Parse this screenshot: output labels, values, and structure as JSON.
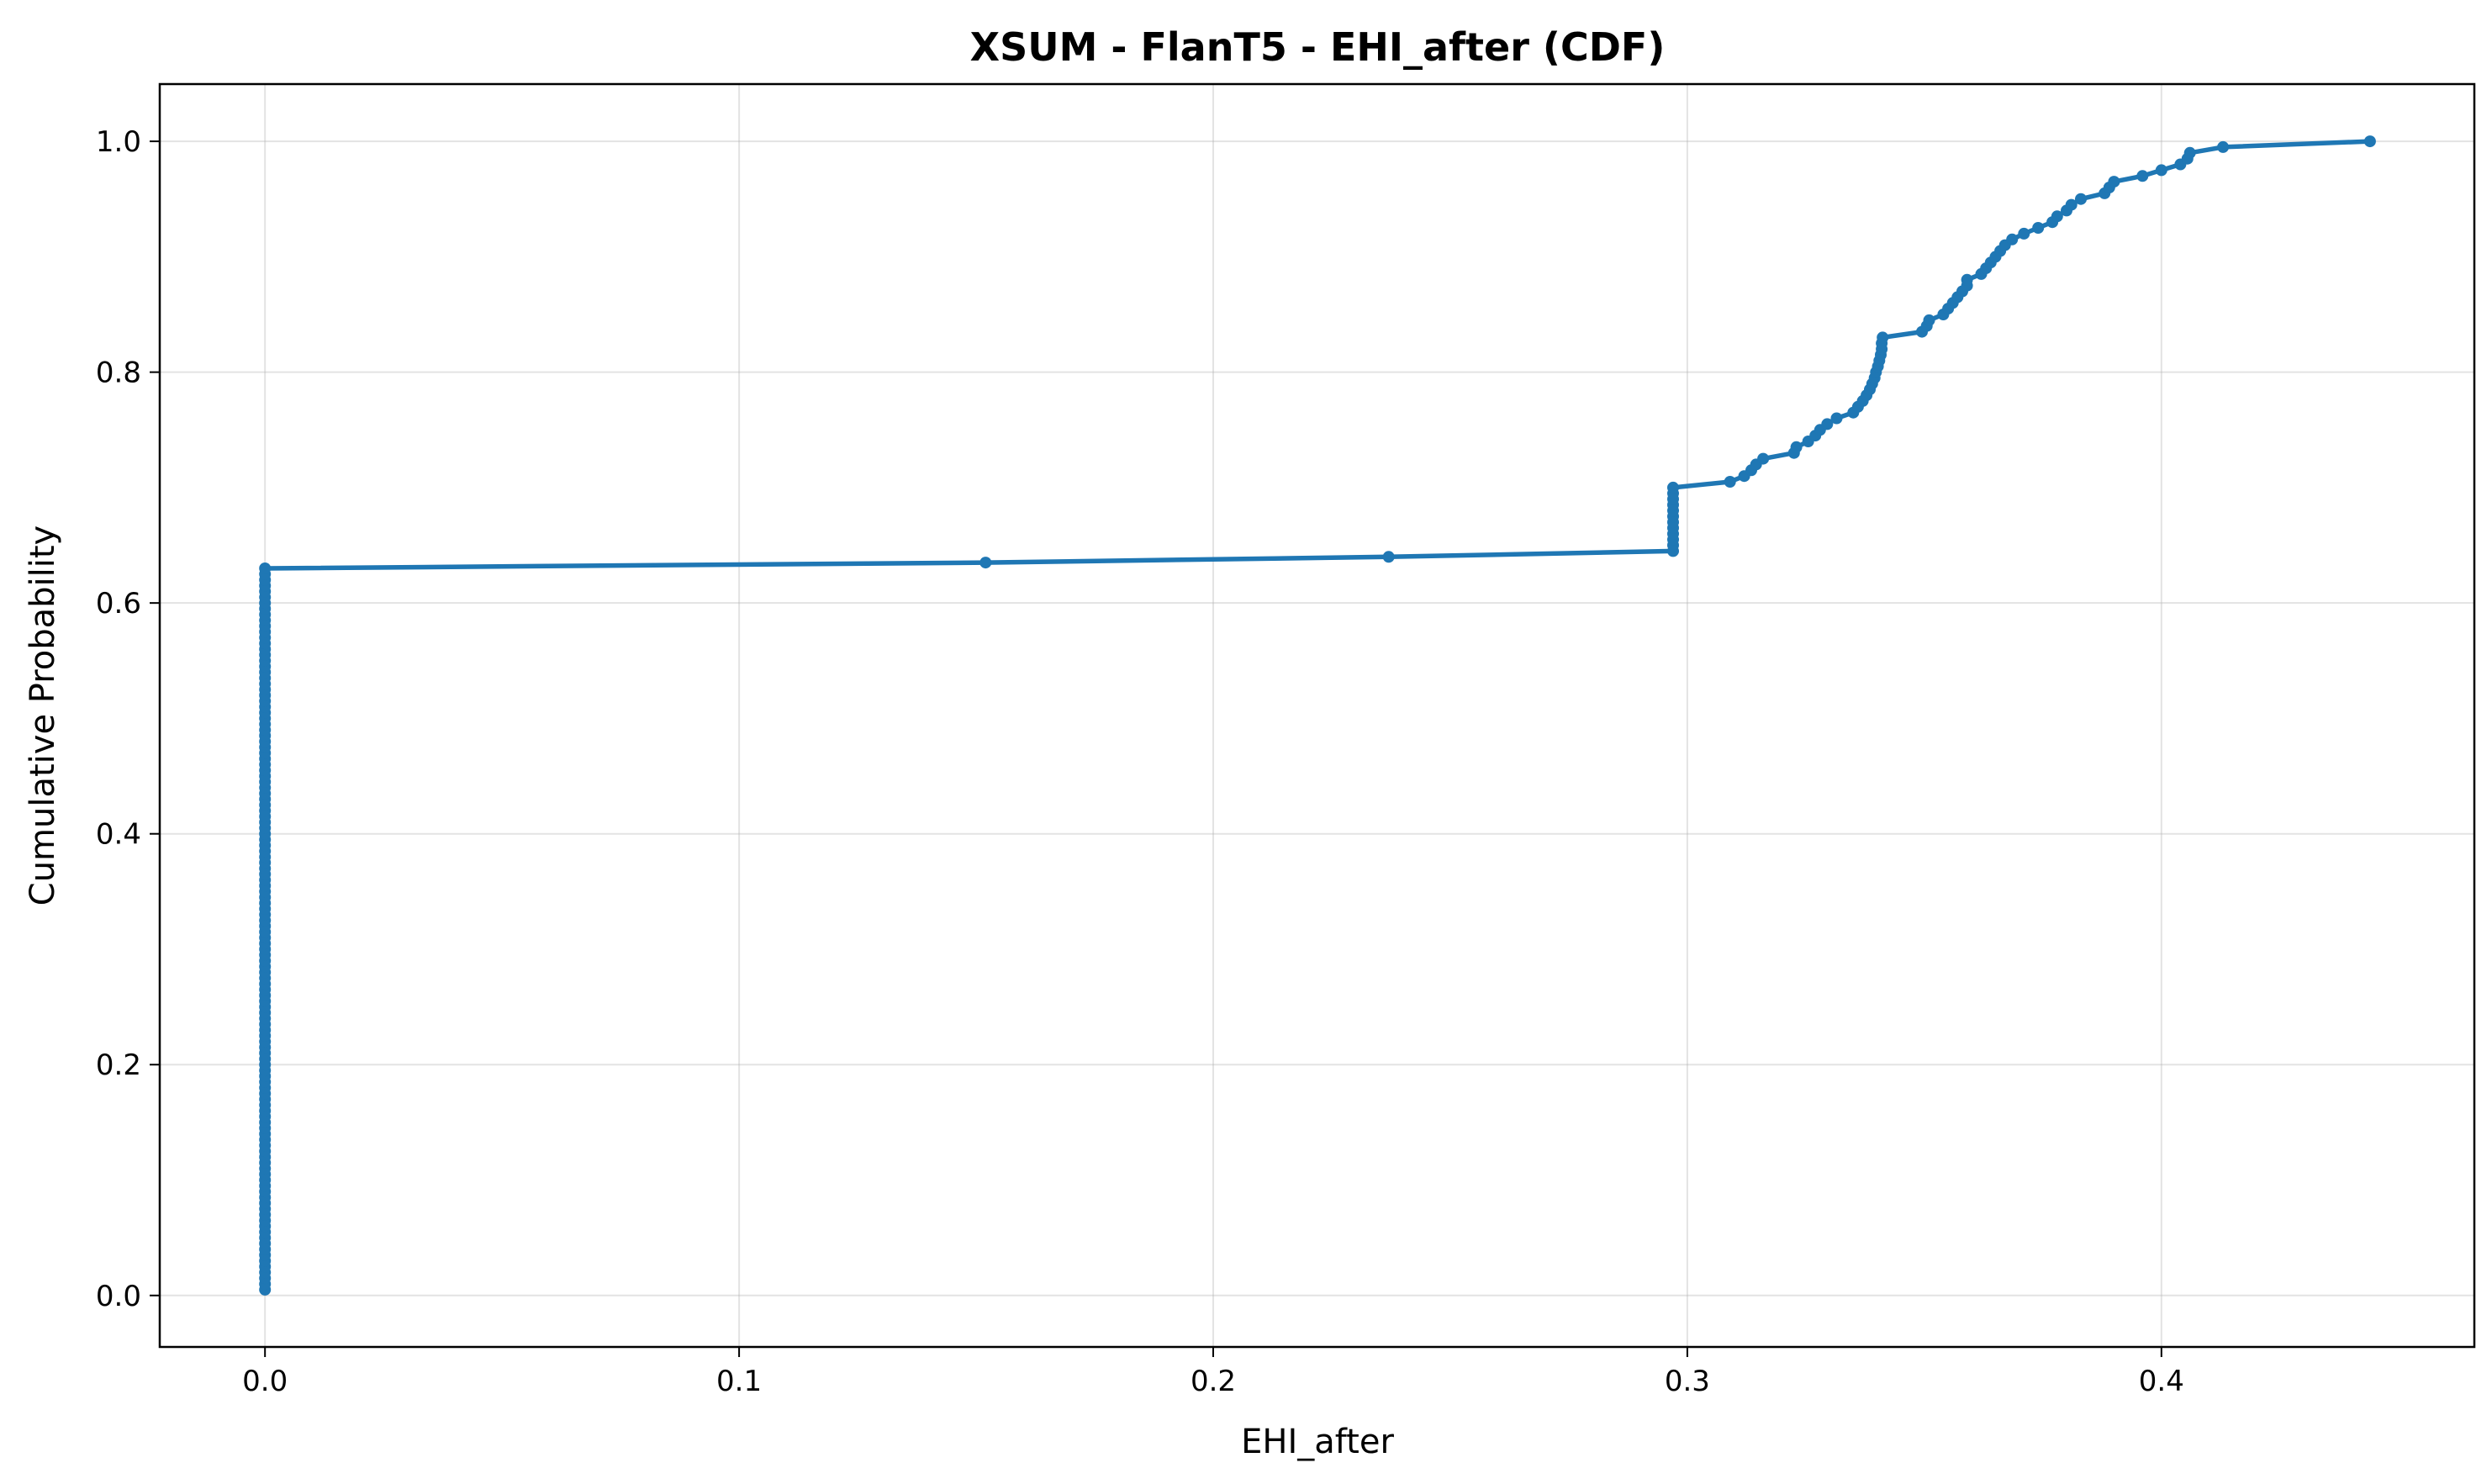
{
  "chart_data": {
    "type": "line",
    "title": "XSUM - FlanT5 - EHI_after (CDF)",
    "xlabel": "EHI_after",
    "ylabel": "Cumulative Probability",
    "xlim": [
      -0.0222,
      0.466
    ],
    "ylim": [
      -0.0446,
      1.0496
    ],
    "xticks": [
      0.0,
      0.1,
      0.2,
      0.3,
      0.4
    ],
    "xtick_labels": [
      "0.0",
      "0.1",
      "0.2",
      "0.3",
      "0.4"
    ],
    "yticks": [
      0.0,
      0.2,
      0.4,
      0.6,
      0.8,
      1.0
    ],
    "ytick_labels": [
      "0.0",
      "0.2",
      "0.4",
      "0.6",
      "0.8",
      "1.0"
    ],
    "grid": true,
    "series": [
      {
        "color": "#1f77b4",
        "marker": "circle",
        "x": [
          0.0,
          0.0,
          0.0,
          0.0,
          0.0,
          0.0,
          0.0,
          0.0,
          0.0,
          0.0,
          0.0,
          0.0,
          0.0,
          0.0,
          0.0,
          0.0,
          0.0,
          0.0,
          0.0,
          0.0,
          0.0,
          0.0,
          0.0,
          0.0,
          0.0,
          0.0,
          0.0,
          0.0,
          0.0,
          0.0,
          0.0,
          0.0,
          0.0,
          0.0,
          0.0,
          0.0,
          0.0,
          0.0,
          0.0,
          0.0,
          0.0,
          0.0,
          0.0,
          0.0,
          0.0,
          0.0,
          0.0,
          0.0,
          0.0,
          0.0,
          0.0,
          0.0,
          0.0,
          0.0,
          0.0,
          0.0,
          0.0,
          0.0,
          0.0,
          0.0,
          0.0,
          0.0,
          0.0,
          0.0,
          0.0,
          0.0,
          0.0,
          0.0,
          0.0,
          0.0,
          0.0,
          0.0,
          0.0,
          0.0,
          0.0,
          0.0,
          0.0,
          0.0,
          0.0,
          0.0,
          0.0,
          0.0,
          0.0,
          0.0,
          0.0,
          0.0,
          0.0,
          0.0,
          0.0,
          0.0,
          0.0,
          0.0,
          0.0,
          0.0,
          0.0,
          0.0,
          0.0,
          0.0,
          0.0,
          0.0,
          0.0,
          0.0,
          0.0,
          0.0,
          0.0,
          0.0,
          0.0,
          0.0,
          0.0,
          0.0,
          0.0,
          0.0,
          0.0,
          0.0,
          0.0,
          0.0,
          0.0,
          0.0,
          0.0,
          0.0,
          0.0,
          0.0,
          0.0,
          0.0,
          0.0,
          0.0,
          0.152,
          0.237,
          0.297,
          0.297,
          0.297,
          0.297,
          0.297,
          0.297,
          0.297,
          0.297,
          0.297,
          0.297,
          0.297,
          0.297,
          0.309,
          0.312,
          0.3135,
          0.3145,
          0.316,
          0.3225,
          0.323,
          0.3255,
          0.327,
          0.328,
          0.3295,
          0.3315,
          0.335,
          0.336,
          0.337,
          0.3378,
          0.3385,
          0.339,
          0.3395,
          0.3398,
          0.3402,
          0.3405,
          0.3408,
          0.341,
          0.341,
          0.3412,
          0.3495,
          0.3505,
          0.351,
          0.354,
          0.355,
          0.356,
          0.357,
          0.358,
          0.359,
          0.359,
          0.362,
          0.363,
          0.364,
          0.365,
          0.366,
          0.367,
          0.3685,
          0.371,
          0.374,
          0.377,
          0.378,
          0.38,
          0.381,
          0.383,
          0.388,
          0.389,
          0.39,
          0.396,
          0.4,
          0.404,
          0.4055,
          0.406,
          0.413,
          0.444
        ],
        "y": [
          0.005,
          0.01,
          0.015,
          0.02,
          0.025,
          0.03,
          0.035,
          0.04,
          0.045,
          0.05,
          0.055,
          0.06,
          0.065,
          0.07,
          0.075,
          0.08,
          0.085,
          0.09,
          0.095,
          0.1,
          0.105,
          0.11,
          0.115,
          0.12,
          0.125,
          0.13,
          0.135,
          0.14,
          0.145,
          0.15,
          0.155,
          0.16,
          0.165,
          0.17,
          0.175,
          0.18,
          0.185,
          0.19,
          0.195,
          0.2,
          0.205,
          0.21,
          0.215,
          0.22,
          0.225,
          0.23,
          0.235,
          0.24,
          0.245,
          0.25,
          0.255,
          0.26,
          0.265,
          0.27,
          0.275,
          0.28,
          0.285,
          0.29,
          0.295,
          0.3,
          0.305,
          0.31,
          0.315,
          0.32,
          0.325,
          0.33,
          0.335,
          0.34,
          0.345,
          0.35,
          0.355,
          0.36,
          0.365,
          0.37,
          0.375,
          0.38,
          0.385,
          0.39,
          0.395,
          0.4,
          0.405,
          0.41,
          0.415,
          0.42,
          0.425,
          0.43,
          0.435,
          0.44,
          0.445,
          0.45,
          0.455,
          0.46,
          0.465,
          0.47,
          0.475,
          0.48,
          0.485,
          0.49,
          0.495,
          0.5,
          0.505,
          0.51,
          0.515,
          0.52,
          0.525,
          0.53,
          0.535,
          0.54,
          0.545,
          0.55,
          0.555,
          0.56,
          0.565,
          0.57,
          0.575,
          0.58,
          0.585,
          0.59,
          0.595,
          0.6,
          0.605,
          0.61,
          0.615,
          0.62,
          0.625,
          0.63,
          0.635,
          0.64,
          0.645,
          0.65,
          0.655,
          0.66,
          0.665,
          0.67,
          0.675,
          0.68,
          0.685,
          0.69,
          0.695,
          0.7,
          0.705,
          0.71,
          0.715,
          0.72,
          0.725,
          0.73,
          0.735,
          0.74,
          0.745,
          0.75,
          0.755,
          0.76,
          0.765,
          0.77,
          0.775,
          0.78,
          0.785,
          0.79,
          0.795,
          0.8,
          0.805,
          0.81,
          0.815,
          0.82,
          0.825,
          0.83,
          0.835,
          0.84,
          0.845,
          0.85,
          0.855,
          0.86,
          0.865,
          0.87,
          0.875,
          0.88,
          0.885,
          0.89,
          0.895,
          0.9,
          0.905,
          0.91,
          0.915,
          0.92,
          0.925,
          0.93,
          0.935,
          0.94,
          0.945,
          0.95,
          0.955,
          0.96,
          0.965,
          0.97,
          0.975,
          0.98,
          0.985,
          0.99,
          0.995,
          1.0
        ]
      }
    ]
  }
}
